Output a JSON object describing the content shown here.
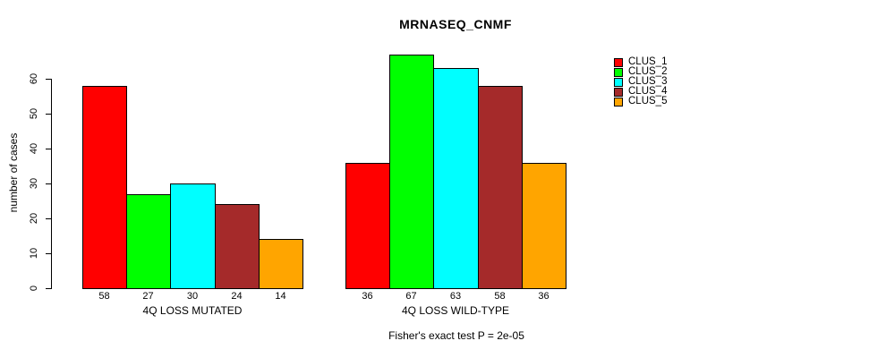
{
  "chart_data": {
    "type": "bar",
    "title": "MRNASEQ_CNMF",
    "ylabel": "number of cases",
    "ylim": [
      0,
      60
    ],
    "yticks": [
      0,
      10,
      20,
      30,
      40,
      50,
      60
    ],
    "grid": false,
    "legend_position": "right-outside-top",
    "series": [
      {
        "name": "CLUS_1",
        "color": "#ff0000"
      },
      {
        "name": "CLUS_2",
        "color": "#00ff00"
      },
      {
        "name": "CLUS_3",
        "color": "#00ffff"
      },
      {
        "name": "CLUS_4",
        "color": "#a52a2a"
      },
      {
        "name": "CLUS_5",
        "color": "#ffa500"
      }
    ],
    "groups": [
      {
        "label": "4Q LOSS MUTATED",
        "values": [
          58,
          27,
          30,
          24,
          14
        ]
      },
      {
        "label": "4Q LOSS WILD-TYPE",
        "values": [
          36,
          67,
          63,
          58,
          36
        ]
      }
    ],
    "bar_value_labels": true,
    "footnote": "Fisher's exact test P = 2e-05"
  }
}
